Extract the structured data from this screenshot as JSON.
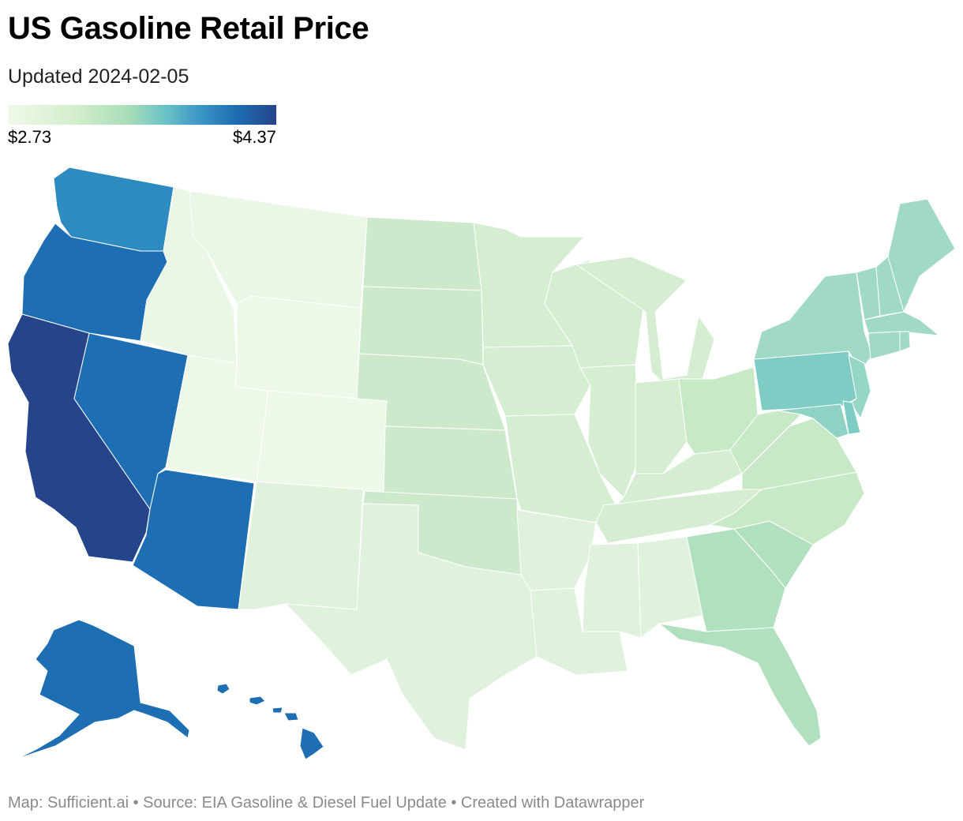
{
  "header": {
    "title": "US Gasoline Retail Price",
    "subtitle": "Updated 2024-02-05"
  },
  "legend": {
    "min_label": "$2.73",
    "max_label": "$4.37",
    "min_value": 2.73,
    "max_value": 4.37,
    "colors": [
      "#f0f9e8",
      "#d3eecd",
      "#a9ddb8",
      "#6cc4c7",
      "#3b95c6",
      "#1d6eb2",
      "#25448a"
    ]
  },
  "map": {
    "type": "choropleth",
    "region": "United States",
    "state_colors": {
      "WA": "#2e8bc0",
      "OR": "#1d6eb2",
      "CA": "#25448a",
      "NV": "#1d6eb2",
      "AZ": "#1d6eb2",
      "ID": "#eaf6e6",
      "MT": "#eaf6e6",
      "WY": "#eef8e8",
      "UT": "#eef8e8",
      "CO": "#eef8e8",
      "NM": "#e0f2dd",
      "TX": "#e0f2dd",
      "ND": "#cde9cc",
      "SD": "#cde9cc",
      "NE": "#cde9cc",
      "KS": "#cde9cc",
      "OK": "#cde9cc",
      "MN": "#d5eed2",
      "IA": "#d5eed2",
      "MO": "#d5eed2",
      "AR": "#e0f2dd",
      "LA": "#e0f2dd",
      "WI": "#d5eed2",
      "IL": "#d5eed2",
      "MI": "#d5eed2",
      "IN": "#d5eed2",
      "KY": "#d5eed2",
      "TN": "#d5eed2",
      "MS": "#e0f2dd",
      "AL": "#e0f2dd",
      "OH": "#c7e9c6",
      "WV": "#c7e9c6",
      "VA": "#c7e9c6",
      "NC": "#c7e9c6",
      "SC": "#b1e0bf",
      "GA": "#b1e0bf",
      "FL": "#b1e0bf",
      "PA": "#7fccc4",
      "NY": "#a0d9c4",
      "NJ": "#96d6c6",
      "MD": "#8fd3c5",
      "DE": "#7fccc4",
      "CT": "#a0d9c4",
      "RI": "#a0d9c4",
      "MA": "#a0d9c4",
      "VT": "#a0d9c4",
      "NH": "#a0d9c4",
      "ME": "#a0d9c4",
      "AK": "#1d6eb2",
      "HI": "#1d6eb2"
    }
  },
  "footer": {
    "text": "Map: Sufficient.ai • Source: EIA Gasoline & Diesel Fuel Update • Created with Datawrapper"
  }
}
